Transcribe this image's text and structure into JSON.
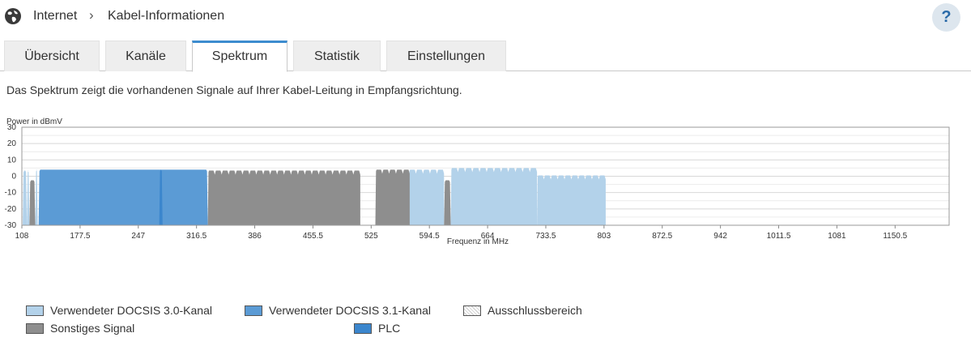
{
  "breadcrumb": {
    "root": "Internet",
    "current": "Kabel-Informationen",
    "separator": "›"
  },
  "help_label": "?",
  "tabs": [
    {
      "label": "Übersicht",
      "active": false
    },
    {
      "label": "Kanäle",
      "active": false
    },
    {
      "label": "Spektrum",
      "active": true
    },
    {
      "label": "Statistik",
      "active": false
    },
    {
      "label": "Einstellungen",
      "active": false
    }
  ],
  "description": "Das Spektrum zeigt die vorhandenen Signale auf Ihrer Kabel-Leitung in Empfangsrichtung.",
  "colors": {
    "docsis30": "#b3d2ea",
    "docsis31": "#5b9bd5",
    "other": "#8e8e8e",
    "plc": "#3b86cd",
    "accent": "#3d8ccf"
  },
  "legend": [
    {
      "label": "Verwendeter DOCSIS 3.0-Kanal",
      "kind": "docsis30"
    },
    {
      "label": "Verwendeter DOCSIS 3.1-Kanal",
      "kind": "docsis31"
    },
    {
      "label": "Ausschlussbereich",
      "kind": "exclusion"
    },
    {
      "label": "Sonstiges Signal",
      "kind": "other"
    },
    {
      "label": "PLC",
      "kind": "plc"
    }
  ],
  "chart_data": {
    "type": "area",
    "ylabel": "Power in dBmV",
    "xlabel": "Frequenz in MHz",
    "xlim": [
      108,
      1215
    ],
    "ylim": [
      -30,
      30
    ],
    "yticks": [
      30,
      20,
      10,
      0,
      -10,
      -20,
      -30
    ],
    "xticks": [
      "108",
      "177.5",
      "247",
      "316.5",
      "386",
      "455.5",
      "525",
      "594.5",
      "664",
      "733.5",
      "803",
      "872.5",
      "942",
      "1011.5",
      "1081",
      "1150.5"
    ],
    "grid": true,
    "series": [
      {
        "kind": "docsis30",
        "segments": [
          {
            "from": 109,
            "to": 114,
            "level": 3.5
          },
          {
            "from": 114,
            "to": 117,
            "level": 3.5
          },
          {
            "from": 124,
            "to": 127,
            "level": 4
          },
          {
            "from": 570,
            "to": 612,
            "level": 4,
            "slots": 5
          },
          {
            "from": 620,
            "to": 723,
            "level": 5,
            "slots": 12
          },
          {
            "from": 723,
            "to": 805,
            "level": 0.5,
            "slots": 10
          }
        ]
      },
      {
        "kind": "docsis31",
        "segments": [
          {
            "from": 128,
            "to": 330,
            "level": 4
          }
        ]
      },
      {
        "kind": "plc",
        "segments": [
          {
            "from": 272,
            "to": 276,
            "level": 4
          }
        ]
      },
      {
        "kind": "other",
        "segments": [
          {
            "from": 117,
            "to": 124,
            "level": -2.5
          },
          {
            "from": 330,
            "to": 512,
            "level": 3.5,
            "slots": 22
          },
          {
            "from": 530,
            "to": 571,
            "level": 4,
            "slots": 5
          },
          {
            "from": 612,
            "to": 620,
            "level": -2.5
          }
        ]
      }
    ]
  }
}
